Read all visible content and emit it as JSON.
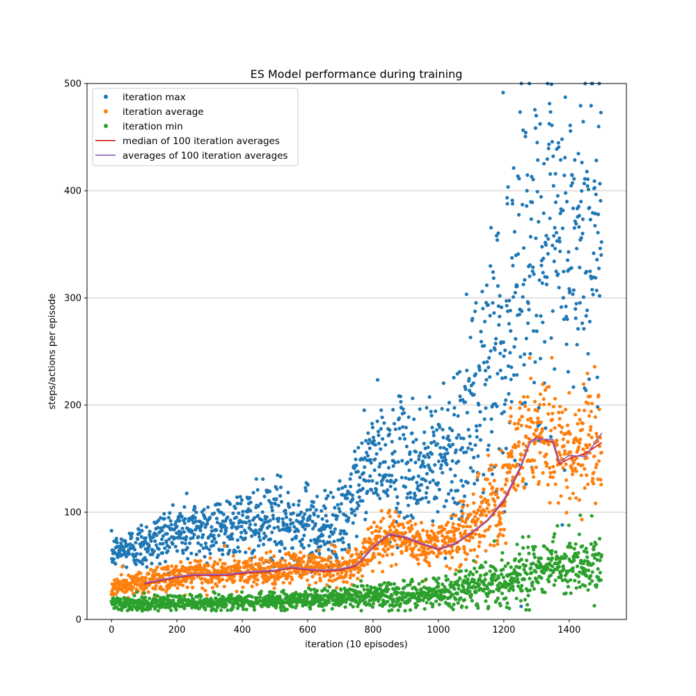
{
  "chart_data": {
    "type": "scatter",
    "title": "ES Model performance during training",
    "xlabel": "iteration (10 episodes)",
    "ylabel": "steps/actions per episode",
    "xlim": [
      -75,
      1575
    ],
    "ylim": [
      0,
      500
    ],
    "xticks": [
      0,
      200,
      400,
      600,
      800,
      1000,
      1200,
      1400
    ],
    "yticks": [
      0,
      100,
      200,
      300,
      400,
      500
    ],
    "grid": "horizontal",
    "legend_position": "top-left",
    "num_points_per_series": 1500,
    "series": [
      {
        "name": "iteration max",
        "kind": "scatter",
        "color": "#1f77b4",
        "trend_x": [
          0,
          100,
          200,
          300,
          400,
          500,
          600,
          700,
          750,
          800,
          850,
          900,
          950,
          1000,
          1050,
          1100,
          1150,
          1200,
          1250,
          1300,
          1350,
          1400,
          1450,
          1500
        ],
        "trend_y": [
          62,
          70,
          82,
          85,
          88,
          90,
          88,
          85,
          120,
          150,
          140,
          145,
          140,
          150,
          160,
          180,
          230,
          270,
          330,
          340,
          330,
          340,
          350,
          380
        ],
        "spread": [
          10,
          15,
          20,
          20,
          22,
          25,
          25,
          25,
          30,
          35,
          40,
          40,
          40,
          45,
          50,
          60,
          80,
          100,
          110,
          110,
          110,
          110,
          110,
          110
        ]
      },
      {
        "name": "iteration average",
        "kind": "scatter",
        "color": "#ff7f0e",
        "trend_x": [
          0,
          100,
          200,
          300,
          400,
          500,
          600,
          700,
          750,
          800,
          850,
          900,
          950,
          1000,
          1050,
          1100,
          1150,
          1200,
          1250,
          1300,
          1350,
          1400,
          1450,
          1500
        ],
        "trend_y": [
          30,
          35,
          40,
          42,
          44,
          46,
          48,
          46,
          52,
          70,
          80,
          75,
          70,
          70,
          75,
          85,
          100,
          120,
          165,
          170,
          165,
          150,
          155,
          170
        ],
        "spread": [
          6,
          8,
          8,
          8,
          9,
          10,
          10,
          10,
          12,
          14,
          16,
          16,
          16,
          16,
          18,
          22,
          28,
          35,
          40,
          42,
          42,
          40,
          40,
          45
        ]
      },
      {
        "name": "iteration min",
        "kind": "scatter",
        "color": "#2ca02c",
        "trend_x": [
          0,
          100,
          200,
          300,
          400,
          500,
          600,
          700,
          800,
          900,
          1000,
          1100,
          1200,
          1300,
          1400,
          1500
        ],
        "trend_y": [
          14,
          15,
          16,
          16,
          17,
          18,
          18,
          19,
          22,
          22,
          23,
          30,
          38,
          45,
          50,
          50
        ],
        "spread": [
          4,
          5,
          5,
          5,
          5,
          6,
          6,
          7,
          9,
          9,
          10,
          13,
          18,
          20,
          20,
          20
        ]
      },
      {
        "name": "median of 100 iteration averages",
        "kind": "line",
        "color": "#d62728",
        "x": [
          100,
          150,
          200,
          250,
          300,
          350,
          400,
          450,
          500,
          550,
          600,
          650,
          700,
          750,
          800,
          850,
          900,
          950,
          1000,
          1050,
          1100,
          1150,
          1200,
          1250,
          1280,
          1300,
          1350,
          1370,
          1400,
          1450,
          1500
        ],
        "y": [
          33,
          36,
          39,
          41,
          41,
          41,
          43,
          44,
          45,
          48,
          46,
          45,
          46,
          50,
          67,
          79,
          76,
          70,
          65,
          70,
          80,
          92,
          110,
          140,
          165,
          170,
          165,
          145,
          150,
          155,
          165
        ]
      },
      {
        "name": "averages of 100 iteration averages",
        "kind": "line",
        "color": "#9467bd",
        "x": [
          100,
          150,
          200,
          250,
          300,
          350,
          400,
          450,
          500,
          550,
          600,
          650,
          700,
          750,
          800,
          850,
          900,
          950,
          1000,
          1050,
          1100,
          1150,
          1200,
          1250,
          1280,
          1300,
          1350,
          1370,
          1400,
          1450,
          1500
        ],
        "y": [
          34,
          37,
          40,
          42,
          42,
          42,
          44,
          45,
          46,
          49,
          47,
          46,
          47,
          51,
          68,
          80,
          77,
          71,
          66,
          71,
          81,
          93,
          112,
          142,
          166,
          168,
          168,
          147,
          153,
          152,
          174
        ]
      }
    ]
  }
}
